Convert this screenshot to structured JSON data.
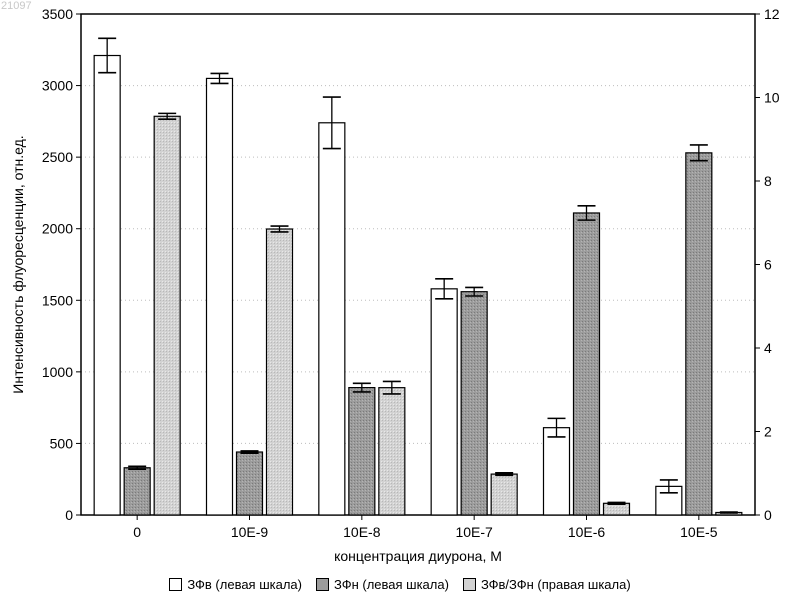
{
  "watermark": "21097",
  "chart_data": {
    "type": "bar",
    "xlabel": "концентрация диурона, М",
    "ylabel": "Интенсивность флуоресценции, отн.ед.",
    "categories": [
      "0",
      "10E-9",
      "10E-8",
      "10E-7",
      "10E-6",
      "10E-5"
    ],
    "ylim_left": [
      0,
      3500
    ],
    "yticks_left": [
      0,
      500,
      1000,
      1500,
      2000,
      2500,
      3000,
      3500
    ],
    "ylim_right": [
      0,
      12
    ],
    "yticks_right": [
      0,
      2,
      4,
      6,
      8,
      10,
      12
    ],
    "grid": true,
    "legend_position": "bottom",
    "series": [
      {
        "name": "ЗФв (левая шкала)",
        "axis": "left",
        "color": "#ffffff",
        "values": [
          3210,
          3050,
          2740,
          1580,
          610,
          200
        ],
        "errors": [
          120,
          35,
          180,
          70,
          65,
          45
        ]
      },
      {
        "name": "ЗФн (левая шкала)",
        "axis": "left",
        "color": "#9c9c9c",
        "values": [
          330,
          440,
          890,
          1560,
          2110,
          2530
        ],
        "errors": [
          10,
          8,
          30,
          30,
          50,
          55
        ]
      },
      {
        "name": "ЗФв/ЗФн (правая шкала)",
        "axis": "right",
        "color": "#d2d2d2",
        "values": [
          9.55,
          6.85,
          3.05,
          0.98,
          0.28,
          0.06
        ],
        "errors": [
          0.07,
          0.07,
          0.15,
          0.03,
          0.02,
          0.01
        ]
      }
    ]
  }
}
